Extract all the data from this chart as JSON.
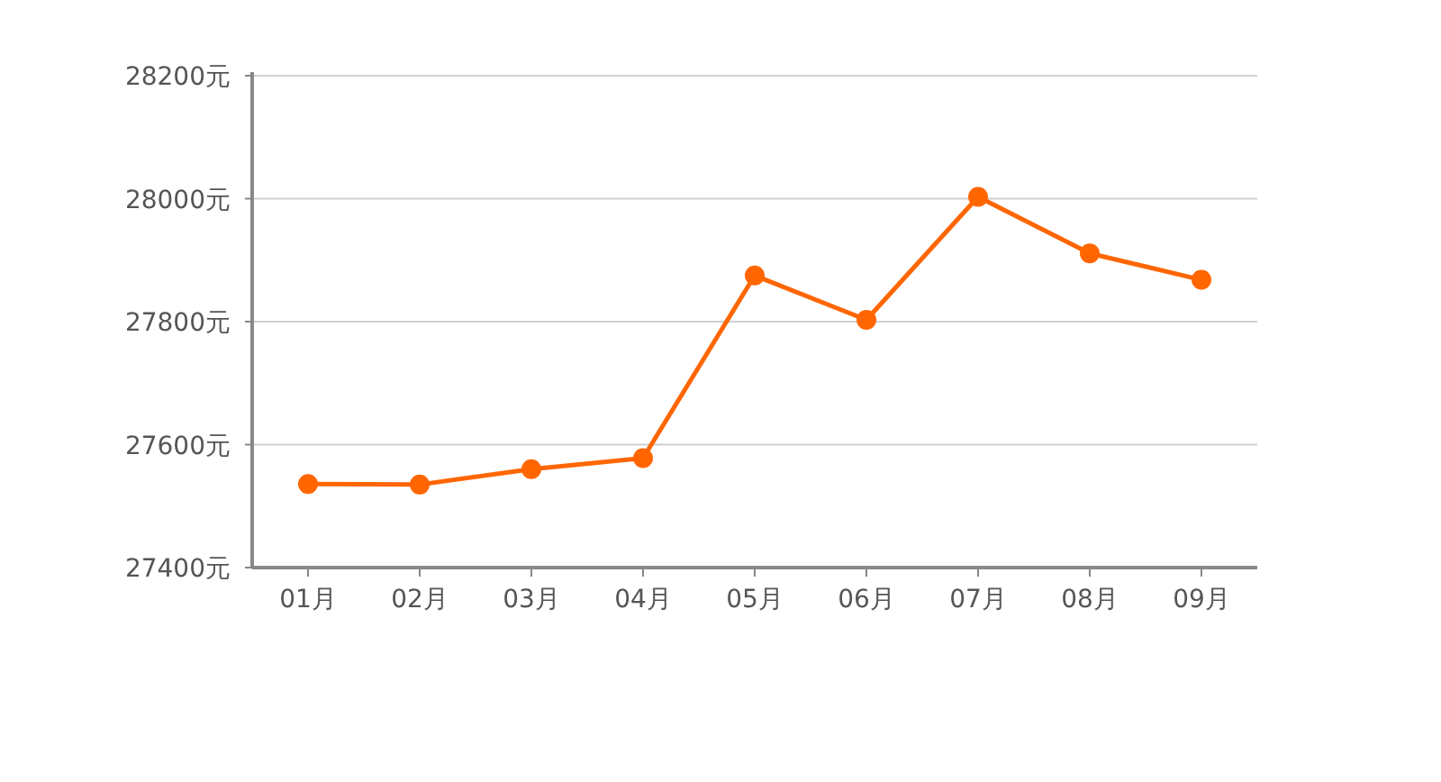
{
  "chart_data": {
    "type": "line",
    "categories": [
      "01月",
      "02月",
      "03月",
      "04月",
      "05月",
      "06月",
      "07月",
      "08月",
      "09月"
    ],
    "series": [
      {
        "color": "#ff6600",
        "values": [
          27536,
          27535,
          27560,
          27578,
          27875,
          27803,
          28003,
          27911,
          27868
        ]
      }
    ],
    "ylim": [
      27400,
      28200
    ],
    "yticks": [
      {
        "value": 27400,
        "label": "27400元"
      },
      {
        "value": 27600,
        "label": "27600元"
      },
      {
        "value": 27800,
        "label": "27800元"
      },
      {
        "value": 28000,
        "label": "28000元"
      },
      {
        "value": 28200,
        "label": "28200元"
      }
    ],
    "grid": "y",
    "marker": "circle"
  }
}
